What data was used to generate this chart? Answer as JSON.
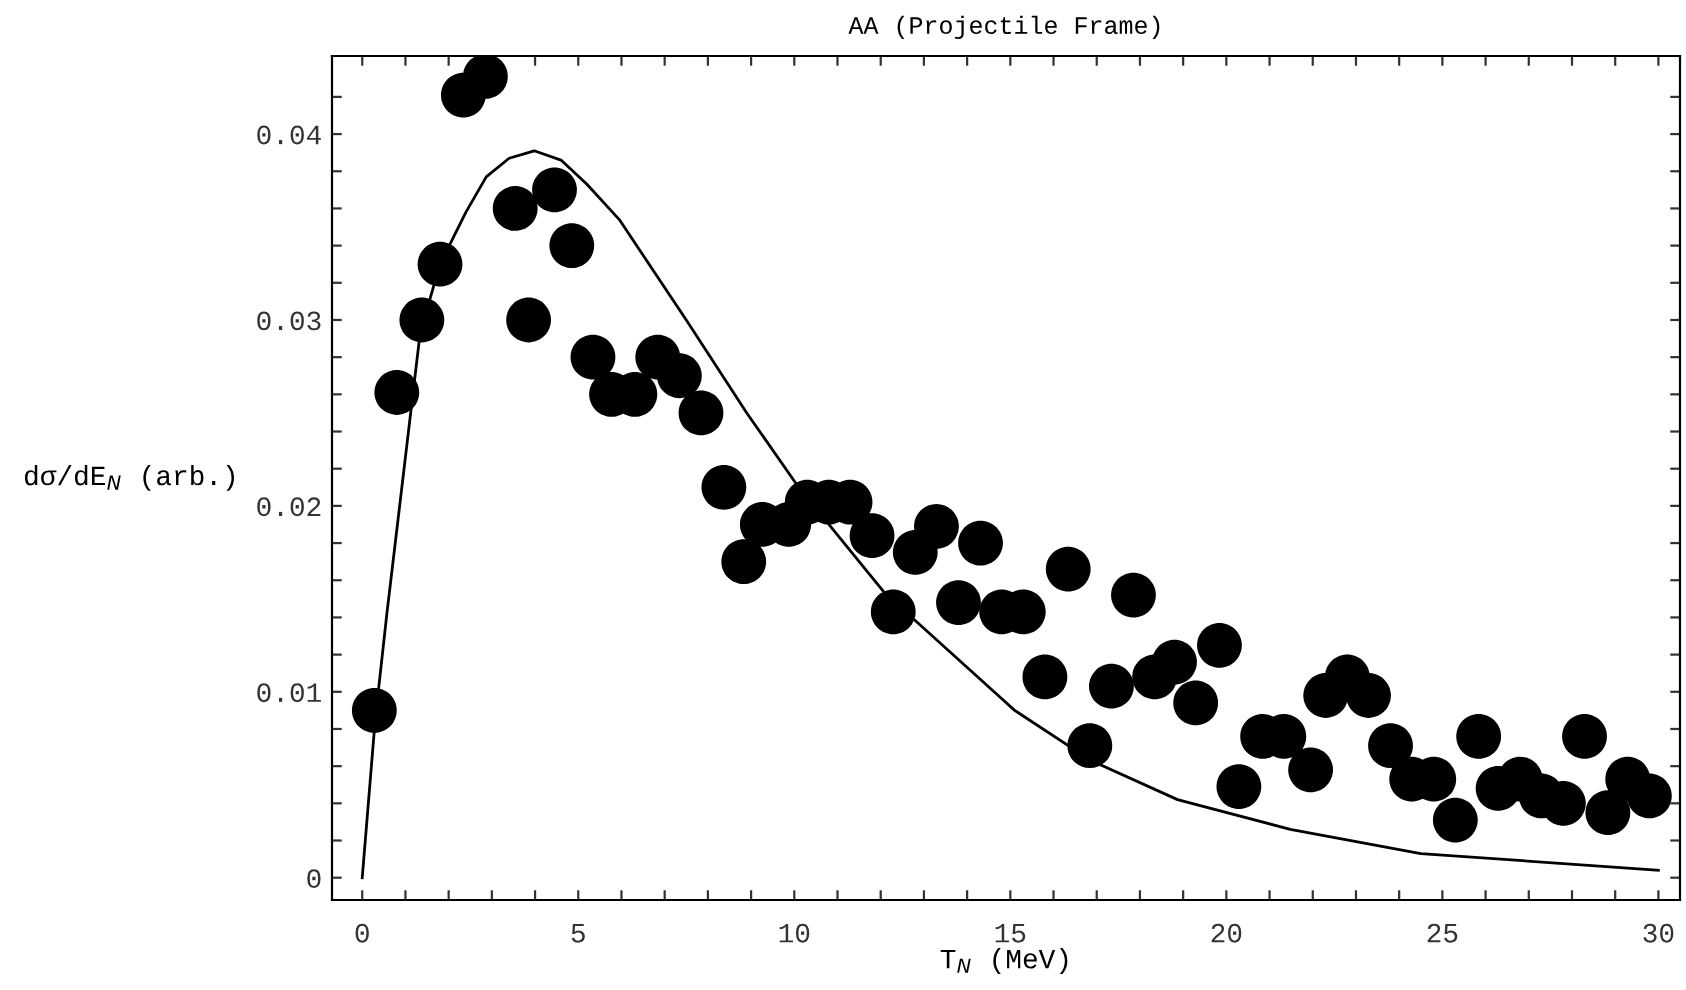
{
  "chart_data": {
    "type": "scatter",
    "title": "AA (Projectile Frame)",
    "xlabel": "T$_{N}$ (MeV)",
    "ylabel": "dσ/dE$_{N}$ (arb.)",
    "xlim": [
      -0.7,
      30.5
    ],
    "ylim": [
      -0.0012,
      0.0442
    ],
    "xticks": [
      0,
      {
        "value": 1,
        "label": null
      },
      {
        "value": 2,
        "label": null
      },
      {
        "value": 3,
        "label": null
      },
      {
        "value": 4,
        "label": null
      },
      5,
      {
        "value": 6,
        "label": null
      },
      {
        "value": 7,
        "label": null
      },
      {
        "value": 8,
        "label": null
      },
      {
        "value": 9,
        "label": null
      },
      10,
      {
        "value": 11,
        "label": null
      },
      {
        "value": 12,
        "label": null
      },
      {
        "value": 13,
        "label": null
      },
      {
        "value": 14,
        "label": null
      },
      15,
      {
        "value": 16,
        "label": null
      },
      {
        "value": 17,
        "label": null
      },
      {
        "value": 18,
        "label": null
      },
      {
        "value": 19,
        "label": null
      },
      20,
      {
        "value": 21,
        "label": null
      },
      {
        "value": 22,
        "label": null
      },
      {
        "value": 23,
        "label": null
      },
      {
        "value": 24,
        "label": null
      },
      25,
      {
        "value": 26,
        "label": null
      },
      {
        "value": 27,
        "label": null
      },
      {
        "value": 28,
        "label": null
      },
      {
        "value": 29,
        "label": null
      },
      30
    ],
    "yticks": [
      0,
      {
        "value": 0.002,
        "label": null
      },
      {
        "value": 0.004,
        "label": null
      },
      {
        "value": 0.006,
        "label": null
      },
      {
        "value": 0.008,
        "label": null
      },
      0.01,
      {
        "value": 0.012,
        "label": null
      },
      {
        "value": 0.014,
        "label": null
      },
      {
        "value": 0.016,
        "label": null
      },
      {
        "value": 0.018,
        "label": null
      },
      0.02,
      {
        "value": 0.022,
        "label": null
      },
      {
        "value": 0.024,
        "label": null
      },
      {
        "value": 0.026,
        "label": null
      },
      {
        "value": 0.028,
        "label": null
      },
      0.03,
      {
        "value": 0.032,
        "label": null
      },
      {
        "value": 0.034,
        "label": null
      },
      {
        "value": 0.036,
        "label": null
      },
      {
        "value": 0.038,
        "label": null
      },
      0.04,
      {
        "value": 0.042,
        "label": null
      }
    ],
    "grid": false,
    "legend": false,
    "marker": "circle",
    "series": [
      {
        "color": "#000000",
        "x": [
          0.28,
          0.8,
          1.38,
          1.8,
          2.34,
          2.85,
          3.54,
          3.85,
          4.45,
          4.85,
          5.34,
          5.77,
          6.31,
          6.84,
          7.34,
          7.84,
          8.37,
          8.83,
          9.26,
          9.87,
          10.3,
          10.8,
          11.29,
          11.8,
          12.29,
          12.8,
          13.29,
          13.8,
          14.31,
          14.8,
          15.3,
          15.8,
          16.34,
          16.84,
          17.34,
          17.85,
          18.34,
          18.8,
          19.29,
          19.84,
          20.29,
          20.84,
          21.33,
          21.95,
          22.3,
          22.8,
          23.29,
          23.8,
          24.29,
          24.8,
          25.3,
          25.84,
          26.29,
          26.8,
          27.29,
          27.8,
          28.29,
          28.83,
          29.29,
          29.79
        ],
        "values": [
          0.009,
          0.0261,
          0.03,
          0.033,
          0.0421,
          0.0431,
          0.036,
          0.03,
          0.037,
          0.034,
          0.028,
          0.026,
          0.026,
          0.028,
          0.027,
          0.025,
          0.021,
          0.017,
          0.019,
          0.019,
          0.0202,
          0.0202,
          0.0202,
          0.0184,
          0.0143,
          0.0175,
          0.0189,
          0.0148,
          0.018,
          0.0143,
          0.0143,
          0.0108,
          0.0166,
          0.0071,
          0.0103,
          0.0152,
          0.0108,
          0.0116,
          0.0094,
          0.0125,
          0.0049,
          0.0076,
          0.0076,
          0.0058,
          0.0098,
          0.0108,
          0.0098,
          0.0071,
          0.0053,
          0.0053,
          0.0031,
          0.0076,
          0.0048,
          0.0053,
          0.0044,
          0.004,
          0.0076,
          0.0035,
          0.0053,
          0.0044
        ]
      },
      {
        "type": "line",
        "color": "#000000",
        "marker": "none",
        "line_style": "solid",
        "x": [
          0,
          0.3,
          0.57,
          1.34,
          1.8,
          2.4,
          2.87,
          3.4,
          3.98,
          4.6,
          5.2,
          5.95,
          7.5,
          8.9,
          10.1,
          12.1,
          14.72,
          15.1,
          16.87,
          18.87,
          21.48,
          24.5,
          30
        ],
        "values": [
          0,
          0.0085,
          0.0142,
          0.0293,
          0.033,
          0.0358,
          0.0377,
          0.0387,
          0.0391,
          0.0386,
          0.0373,
          0.0354,
          0.03,
          0.025,
          0.021,
          0.0153,
          0.0098,
          0.009,
          0.0063,
          0.0042,
          0.0026,
          0.0013,
          0.0004
        ]
      }
    ]
  }
}
